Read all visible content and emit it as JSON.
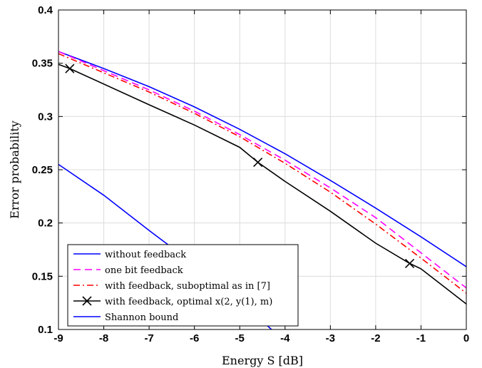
{
  "chart_data": {
    "type": "line",
    "xlabel": "Energy S [dB]",
    "ylabel": "Error probability",
    "xlim": [
      -9,
      0
    ],
    "ylim": [
      0.1,
      0.4
    ],
    "grid": true,
    "legend_position": "bottom-left",
    "x_ticks": [
      -9,
      -8,
      -7,
      -6,
      -5,
      -4,
      -3,
      -2,
      -1,
      0
    ],
    "x_tick_labels": [
      "-9",
      "-8",
      "-7",
      "-6",
      "-5",
      "-4",
      "-3",
      "-2",
      "-1",
      "0"
    ],
    "y_ticks": [
      0.1,
      0.15,
      0.2,
      0.25,
      0.3,
      0.35,
      0.4
    ],
    "y_tick_labels": [
      "0.1",
      "0.15",
      "0.2",
      "0.25",
      "0.3",
      "0.35",
      "0.4"
    ],
    "series": [
      {
        "name": "without feedback",
        "color": "#0000ff",
        "style": "solid",
        "marker": "none",
        "x": [
          -9,
          -8,
          -7,
          -6,
          -5,
          -4,
          -3,
          -2,
          -1,
          0
        ],
        "y": [
          0.361,
          0.345,
          0.328,
          0.309,
          0.288,
          0.265,
          0.24,
          0.214,
          0.187,
          0.159
        ]
      },
      {
        "name": "one bit feedback",
        "color": "#ff00ff",
        "style": "dashed",
        "marker": "none",
        "x": [
          -9,
          -8,
          -7,
          -6,
          -5,
          -4,
          -3,
          -2,
          -1,
          0
        ],
        "y": [
          0.361,
          0.343,
          0.325,
          0.305,
          0.283,
          0.259,
          0.233,
          0.205,
          0.172,
          0.139
        ]
      },
      {
        "name": "with feedback, suboptimal as in [7]",
        "color": "#ff0000",
        "style": "dashdot",
        "marker": "none",
        "x": [
          -9,
          -8,
          -7,
          -6,
          -5,
          -4,
          -3,
          -2,
          -1,
          0
        ],
        "y": [
          0.359,
          0.341,
          0.323,
          0.303,
          0.281,
          0.256,
          0.229,
          0.199,
          0.167,
          0.134
        ]
      },
      {
        "name": "with feedback, optimal x(2, y(1), m)",
        "color": "#000000",
        "style": "solid",
        "marker": "x",
        "x": [
          -9,
          -8.75,
          -7,
          -6,
          -5,
          -4.6,
          -4,
          -3,
          -2,
          -1.25,
          -1,
          0
        ],
        "y": [
          0.349,
          0.345,
          0.311,
          0.292,
          0.271,
          0.257,
          0.239,
          0.211,
          0.181,
          0.162,
          0.157,
          0.124
        ],
        "marker_x": [
          -8.75,
          -4.6,
          -1.25
        ],
        "marker_y": [
          0.345,
          0.257,
          0.162
        ]
      },
      {
        "name": "Shannon bound",
        "color": "#0000ff",
        "style": "solid",
        "marker": "none",
        "x": [
          -9,
          -8,
          -7,
          -6,
          -5,
          -4.3
        ],
        "y": [
          0.255,
          0.226,
          0.193,
          0.161,
          0.128,
          0.1
        ]
      }
    ]
  }
}
